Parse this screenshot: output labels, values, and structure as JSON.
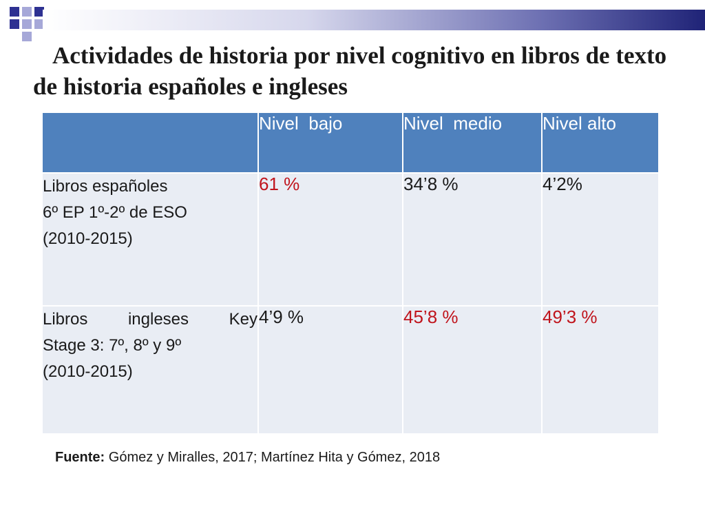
{
  "title": "Actividades de historia por nivel cognitivo en libros de texto de historia  españoles e ingleses",
  "table": {
    "headers": [
      "",
      "Nivel  bajo",
      "Nivel  medio",
      "Nivel alto"
    ],
    "rows": [
      {
        "label_lines": [
          "Libros españoles",
          "6º EP 1º-2º de ESO",
          "(2010-2015)"
        ],
        "values": [
          "61 %",
          "34’8 %",
          "4’2%"
        ]
      },
      {
        "label_lines": [
          "Libros ingleses Key",
          "Stage 3: 7º, 8º y 9º",
          "(2010-2015)"
        ],
        "values": [
          "4’9 %",
          "45’8 %",
          "49’3 %"
        ]
      }
    ]
  },
  "source": {
    "label": "Fuente:",
    "text": " Gómez y Miralles, 2017; Martínez Hita y Gómez, 2018"
  },
  "colors": {
    "header_bg": "#4f81bd",
    "cell_bg": "#e9edf4",
    "highlight": "#c0141c",
    "accent_navy": "#2e3192"
  }
}
